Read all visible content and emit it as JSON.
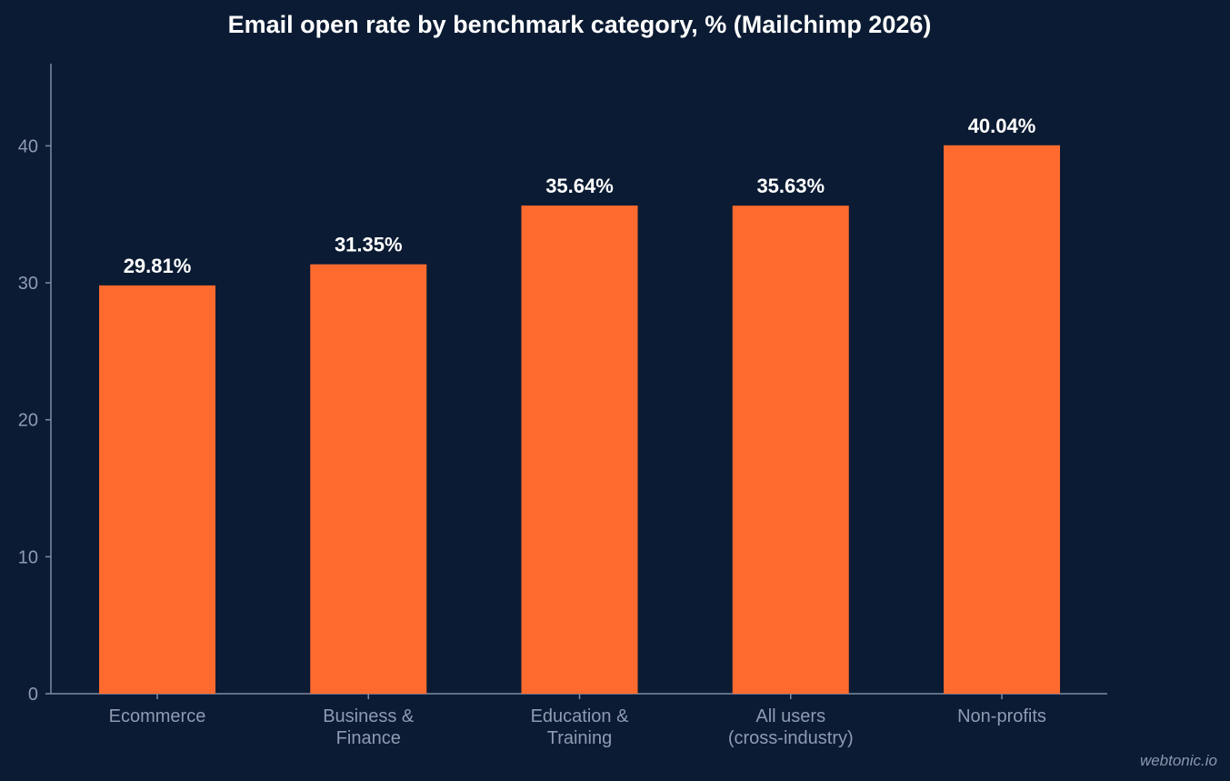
{
  "chart_data": {
    "type": "bar",
    "title": "Email open rate by benchmark category, % (Mailchimp 2026)",
    "categories": [
      [
        "Ecommerce"
      ],
      [
        "Business &",
        "Finance"
      ],
      [
        "Education &",
        "Training"
      ],
      [
        "All users",
        "(cross-industry)"
      ],
      [
        "Non-profits"
      ]
    ],
    "values": [
      29.81,
      31.35,
      35.64,
      35.63,
      40.04
    ],
    "data_labels": [
      "29.81%",
      "31.35%",
      "35.64%",
      "35.63%",
      "40.04%"
    ],
    "yticks": [
      0,
      10,
      20,
      30,
      40
    ],
    "ylim": [
      0,
      46
    ],
    "grid": false,
    "bar_color": "#ff6b2e",
    "axis_color": "#7f8ca3",
    "tick_label_color": "#8f9bb1",
    "data_label_color": "#ffffff"
  },
  "watermark": "webtonic.io"
}
